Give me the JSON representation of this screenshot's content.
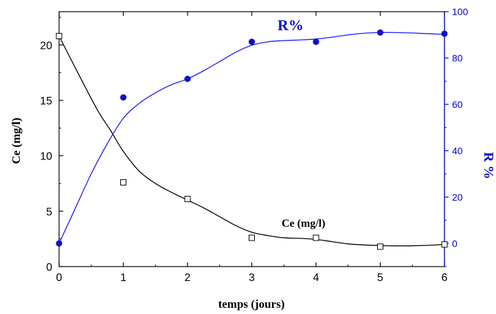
{
  "chart_data": {
    "type": "scatter",
    "x": [
      0,
      1,
      2,
      3,
      4,
      5,
      6
    ],
    "xlabel": "temps (jours)",
    "ylabel": "Ce (mg/l)",
    "y2label": "R %",
    "xlim": [
      0,
      6
    ],
    "ylim": [
      0,
      23
    ],
    "y2lim": [
      -10,
      100
    ],
    "x_ticks": [
      "0",
      "1",
      "2",
      "3",
      "4",
      "5",
      "6"
    ],
    "y_ticks": [
      "0",
      "5",
      "10",
      "15",
      "20"
    ],
    "y2_ticks": [
      "0",
      "20",
      "40",
      "60",
      "80",
      "100"
    ],
    "series": [
      {
        "name": "Ce (mg/l)",
        "axis": "left",
        "marker": "open-square",
        "color": "#000000",
        "values": [
          20.8,
          7.6,
          6.1,
          2.6,
          2.6,
          1.8,
          2.0
        ],
        "fit_curve": [
          [
            0,
            20.8
          ],
          [
            0.3,
            17.4
          ],
          [
            0.6,
            14.1
          ],
          [
            0.8,
            12.3
          ],
          [
            1.0,
            10.4
          ],
          [
            1.25,
            8.6
          ],
          [
            1.5,
            7.5
          ],
          [
            1.75,
            6.7
          ],
          [
            2.0,
            6.0
          ],
          [
            2.25,
            5.3
          ],
          [
            2.5,
            4.5
          ],
          [
            2.75,
            3.7
          ],
          [
            3.0,
            3.1
          ],
          [
            3.25,
            2.8
          ],
          [
            3.5,
            2.6
          ],
          [
            3.75,
            2.55
          ],
          [
            4.0,
            2.45
          ],
          [
            4.25,
            2.25
          ],
          [
            4.5,
            2.05
          ],
          [
            4.75,
            1.95
          ],
          [
            5.0,
            1.9
          ],
          [
            5.25,
            1.87
          ],
          [
            5.5,
            1.88
          ],
          [
            5.75,
            1.92
          ],
          [
            6.0,
            2.0
          ]
        ]
      },
      {
        "name": "R%",
        "axis": "right",
        "marker": "filled-circle",
        "color": "#1010c8",
        "values": [
          0,
          63,
          71,
          87,
          87,
          91,
          90.5
        ],
        "fit_curve": [
          [
            0,
            0
          ],
          [
            0.25,
            15
          ],
          [
            0.5,
            30
          ],
          [
            0.75,
            43
          ],
          [
            1.0,
            54
          ],
          [
            1.25,
            60.5
          ],
          [
            1.5,
            65
          ],
          [
            1.75,
            68.5
          ],
          [
            2.0,
            71
          ],
          [
            2.25,
            74.5
          ],
          [
            2.5,
            78.5
          ],
          [
            2.75,
            82.5
          ],
          [
            3.0,
            85.5
          ],
          [
            3.25,
            87
          ],
          [
            3.5,
            87.5
          ],
          [
            3.75,
            87.8
          ],
          [
            4.0,
            88.2
          ],
          [
            4.25,
            89
          ],
          [
            4.5,
            90
          ],
          [
            4.75,
            90.7
          ],
          [
            5.0,
            91
          ],
          [
            5.25,
            91
          ],
          [
            5.5,
            90.8
          ],
          [
            5.75,
            90.5
          ],
          [
            6.0,
            90.2
          ]
        ]
      }
    ],
    "annotations": [
      "R%",
      "Ce (mg/l)"
    ]
  }
}
